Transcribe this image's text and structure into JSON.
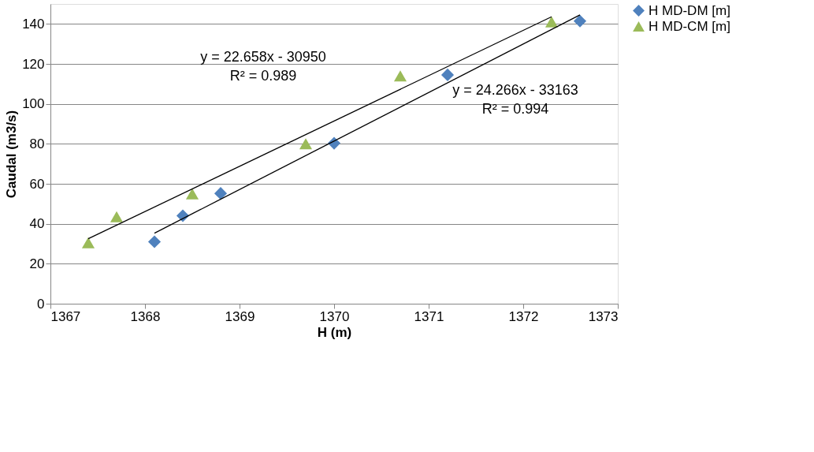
{
  "chart_data": {
    "type": "scatter",
    "xlabel": "H (m)",
    "ylabel": "Caudal (m3/s)",
    "xlim": [
      1367,
      1373
    ],
    "xticks": [
      1367,
      1368,
      1369,
      1370,
      1371,
      1372,
      1373
    ],
    "ylim": [
      0,
      150
    ],
    "yticks": [
      0,
      20,
      40,
      60,
      80,
      100,
      120,
      140
    ],
    "grid": "y",
    "legend": "right",
    "series": [
      {
        "name": "H MD-DM [m]",
        "color": "#4f81bd",
        "marker": "diamond",
        "x": [
          1368.1,
          1368.4,
          1368.8,
          1370.0,
          1371.2,
          1372.6
        ],
        "values": [
          31,
          44,
          55.2,
          80.3,
          114.5,
          141.4
        ]
      },
      {
        "name": "H MD-CM [m]",
        "color": "#9bbb59",
        "marker": "triangle",
        "x": [
          1367.4,
          1367.7,
          1368.5,
          1369.7,
          1370.7,
          1372.3
        ],
        "values": [
          30.5,
          43.5,
          55,
          80,
          114,
          141
        ]
      },
      {
        "type": "line",
        "color": "#000000",
        "x": [
          1368.1,
          1372.6
        ],
        "values": [
          35.3,
          144.5
        ]
      },
      {
        "type": "line",
        "color": "#000000",
        "x": [
          1367.4,
          1372.3
        ],
        "values": [
          32.5,
          143.6
        ]
      }
    ],
    "annotations": [
      "y = 22.658x - 30950",
      "R² = 0.989",
      "y = 24.266x - 33163",
      "R² = 0.994"
    ]
  }
}
